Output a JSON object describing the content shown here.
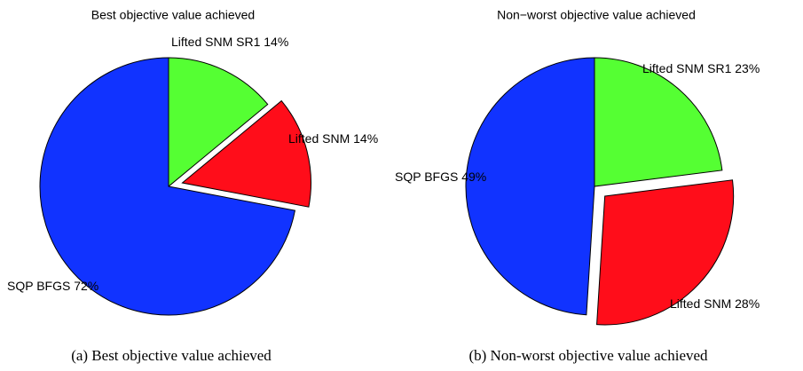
{
  "chart_data": [
    {
      "type": "pie",
      "title": "Best objective value achieved",
      "caption": "(a) Best objective value achieved",
      "categories": [
        "Lifted SNM SR1",
        "Lifted SNM",
        "SQP BFGS"
      ],
      "values": [
        14,
        14,
        72
      ],
      "value_labels": [
        "14%",
        "14%",
        "72%"
      ],
      "colors": [
        "#55ff33",
        "#ff0d1a",
        "#1133ff"
      ]
    },
    {
      "type": "pie",
      "title": "Non−worst objective value achieved",
      "caption": "(b) Non-worst objective value achieved",
      "categories": [
        "Lifted SNM SR1",
        "Lifted SNM",
        "SQP BFGS"
      ],
      "values": [
        23,
        28,
        49
      ],
      "value_labels": [
        "23%",
        "28%",
        "49%"
      ],
      "colors": [
        "#55ff33",
        "#ff0d1a",
        "#1133ff"
      ]
    }
  ]
}
